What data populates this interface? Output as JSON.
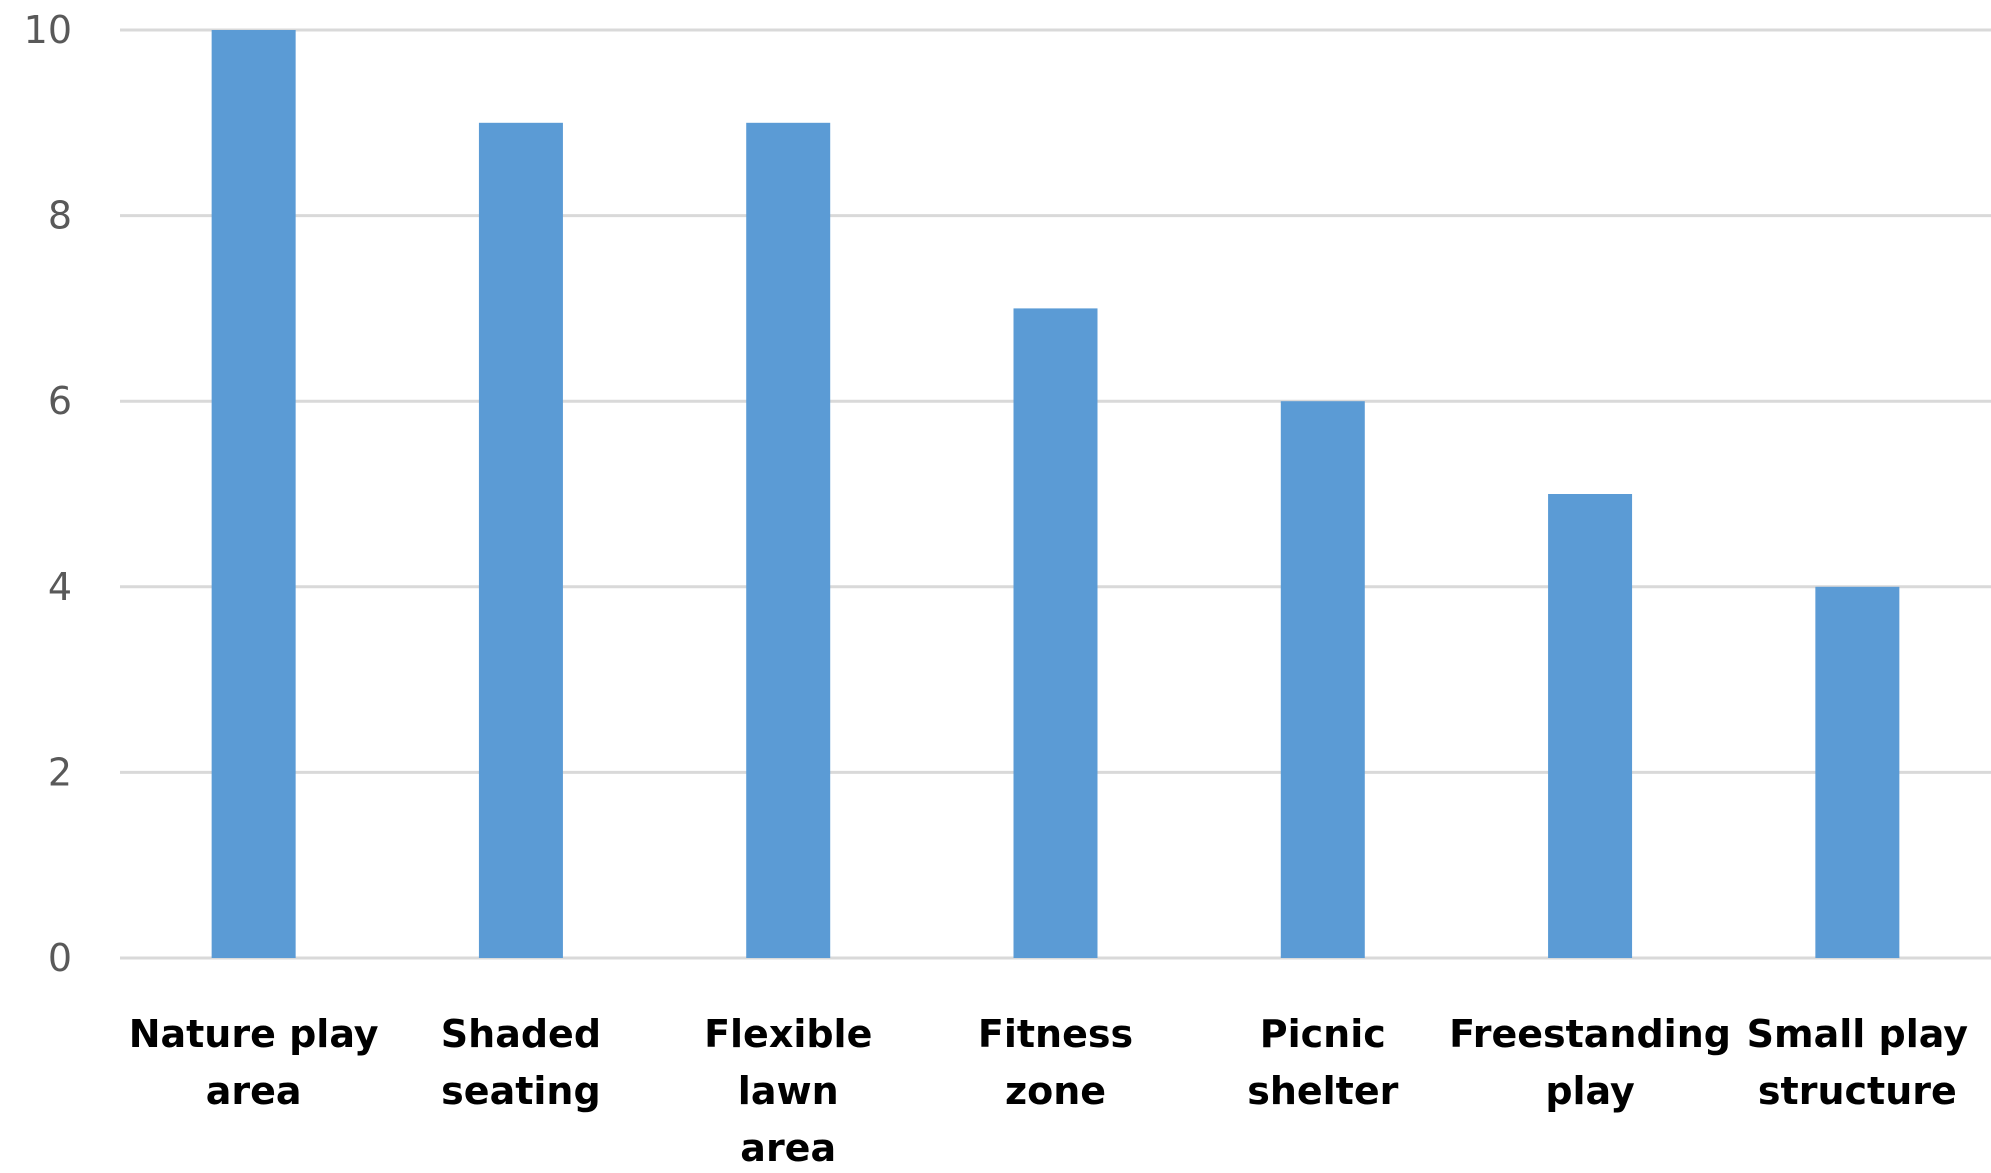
{
  "chart_data": {
    "type": "bar",
    "categories": [
      [
        "Nature play",
        "area"
      ],
      [
        "Shaded",
        "seating"
      ],
      [
        "Flexible",
        "lawn",
        "area"
      ],
      [
        "Fitness",
        "zone"
      ],
      [
        "Picnic",
        "shelter"
      ],
      [
        "Freestanding",
        "play"
      ],
      [
        "Small play",
        "structure"
      ]
    ],
    "values": [
      10,
      9,
      9,
      7,
      6,
      5,
      4
    ],
    "title": "",
    "xlabel": "",
    "ylabel": "",
    "ylim": [
      0,
      10
    ],
    "yticks": [
      0,
      2,
      4,
      6,
      8,
      10
    ],
    "grid": true,
    "legend": "none"
  },
  "colors": {
    "bar": "#5B9BD5",
    "grid": "#D9D9D9",
    "tick_text": "#595959",
    "category_text": "#000000"
  }
}
